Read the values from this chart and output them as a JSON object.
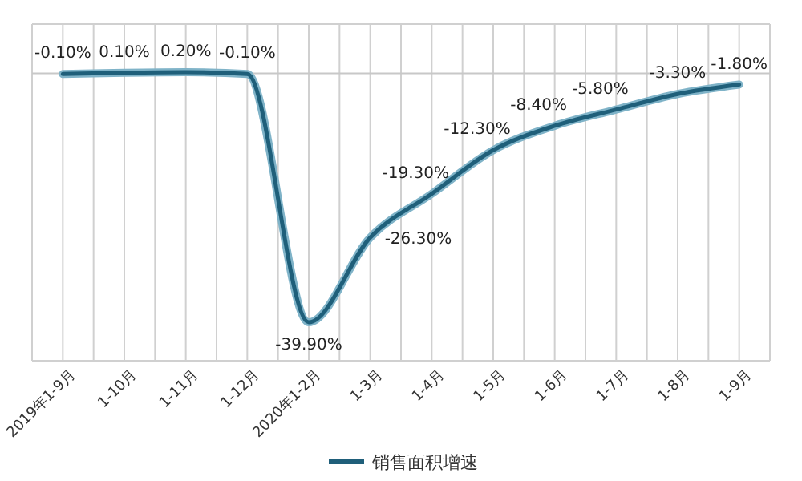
{
  "chart_data": {
    "type": "line",
    "categories": [
      "2019年1-9月",
      "1-10月",
      "1-11月",
      "1-12月",
      "2020年1-2月",
      "1-3月",
      "1-4月",
      "1-5月",
      "1-6月",
      "1-7月",
      "1-8月",
      "1-9月"
    ],
    "series": [
      {
        "name": "销售面积增速",
        "color": "#1f5f7a",
        "values": [
          -0.1,
          0.1,
          0.2,
          -0.1,
          -39.9,
          -26.3,
          -19.3,
          -12.3,
          -8.4,
          -5.8,
          -3.3,
          -1.8
        ],
        "value_labels": [
          "-0.10%",
          "0.10%",
          "0.20%",
          "-0.10%",
          "-39.90%",
          "-26.30%",
          "-19.30%",
          "-12.30%",
          "-8.40%",
          "-5.80%",
          "-3.30%",
          "-1.80%"
        ]
      }
    ],
    "grid": "x",
    "legend": "bottom",
    "marker": "none",
    "line_style": "solid"
  }
}
